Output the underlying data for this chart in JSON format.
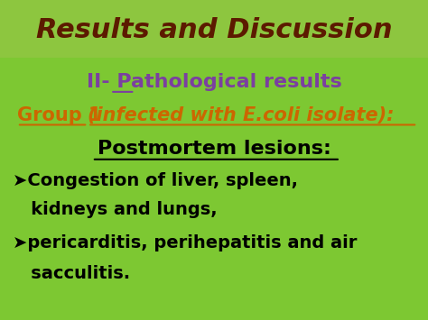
{
  "bg_color": "#7dc832",
  "header_bg": "#8dc63f",
  "header_text": "Results and Discussion",
  "header_text_color": "#5c1a00",
  "header_font_size": 22,
  "line1_ii": "II-",
  "line1_rest": " Pathological results",
  "line1_color": "#7b3fa0",
  "line1_font_size": 16,
  "line2_group": "Group 1 ",
  "line2_rest": "(infected with ",
  "line2_ecoli": "E.coli",
  "line2_end": " isolate):",
  "line2_color": "#cc6600",
  "line2_font_size": 15,
  "line3_text": "Postmortem lesions:",
  "line3_color": "#000000",
  "line3_font_size": 16,
  "bullet1_line1": "➤Congestion of liver, spleen,",
  "bullet1_line2": "   kidneys and lungs,",
  "bullet2_line1": "➤pericarditis, perihepatitis and air",
  "bullet2_line2": "   sacculitis.",
  "bullet_color": "#000000",
  "bullet_font_size": 14
}
